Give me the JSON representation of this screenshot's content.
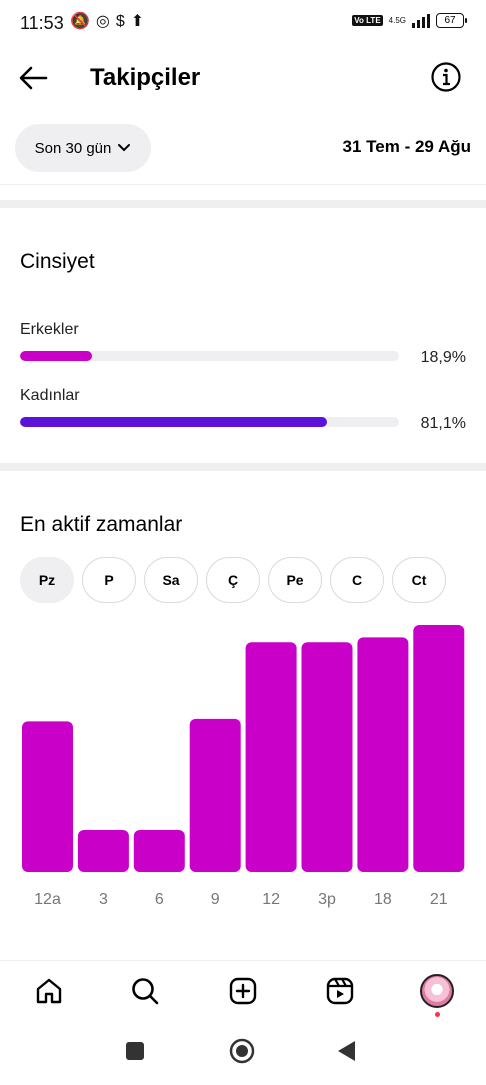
{
  "status_bar": {
    "time": "11:53",
    "icons": [
      "mute-notification-icon",
      "whatsapp-icon",
      "dollar-icon",
      "upload-icon"
    ],
    "network": "4.5G",
    "volte": "Vo LTE",
    "battery": "67"
  },
  "header": {
    "title": "Takipçiler"
  },
  "filters": {
    "period": "Son 30 gün",
    "date_range": "31 Tem - 29 Ağu"
  },
  "gender": {
    "title": "Cinsiyet",
    "items": [
      {
        "label": "Erkekler",
        "percent": "18,9%",
        "value": 18.9,
        "color": "#c800c8"
      },
      {
        "label": "Kadınlar",
        "percent": "81,1%",
        "value": 81.1,
        "color": "#5b12d9"
      }
    ]
  },
  "active_times": {
    "title": "En aktif zamanlar",
    "days": [
      "Pz",
      "P",
      "Sa",
      "Ç",
      "Pe",
      "C",
      "Ct"
    ],
    "selected_day": "Pz"
  },
  "chart_data": {
    "type": "bar",
    "categories": [
      "12a",
      "3",
      "6",
      "9",
      "12",
      "3p",
      "18",
      "21"
    ],
    "values": [
      61,
      17,
      17,
      62,
      93,
      93,
      95,
      100
    ],
    "ylim": [
      0,
      100
    ],
    "color": "#c800c8",
    "grid": false,
    "legend": "none"
  },
  "bottom_nav": [
    "home-icon",
    "search-icon",
    "create-icon",
    "reels-icon",
    "profile-avatar"
  ],
  "system_nav": [
    "recents-button",
    "home-button",
    "back-button"
  ]
}
